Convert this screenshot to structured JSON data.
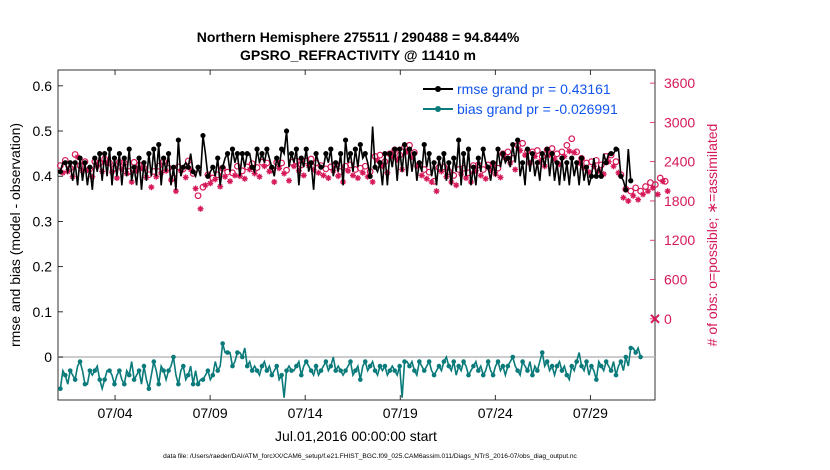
{
  "chart_data": {
    "type": "line",
    "title": [
      "Northern Hemisphere 275511 / 290488 = 94.844%",
      "GPSRO_REFRACTIVITY @ 11410 m"
    ],
    "xlabel": "Jul.01,2016 00:00:00 start",
    "ylabel_left": "rmse and bias (model - observation)",
    "ylabel_right": "# of obs: o=possible; ∗=assimilated",
    "footer": "data file: /Users/raeder/DAI/ATM_forcXX/CAM6_setup/f.e21.FHIST_BGC.f09_025.CAM6assim.011/Diags_NTrS_2016-07/obs_diag_output.nc",
    "x_ticks": [
      4,
      9,
      14,
      19,
      24,
      29
    ],
    "x_tick_labels": [
      "07/04",
      "07/09",
      "07/14",
      "07/19",
      "07/24",
      "07/29"
    ],
    "xlim": [
      1.0,
      32.4
    ],
    "ylim_left": [
      -0.095,
      0.635
    ],
    "y_ticks_left": [
      0,
      0.1,
      0.2,
      0.3,
      0.4,
      0.5,
      0.6
    ],
    "y_tick_labels_left": [
      "0",
      "0.1",
      "0.2",
      "0.3",
      "0.4",
      "0.5",
      "0.6"
    ],
    "ylim_right": [
      -1240,
      3800
    ],
    "y_ticks_right": [
      0,
      600,
      1200,
      1800,
      2400,
      3000,
      3600
    ],
    "y_tick_labels_right": [
      "0",
      "600",
      "1200",
      "1800",
      "2400",
      "3000",
      "3600"
    ],
    "colors": {
      "rmse": "#000000",
      "bias": "#0a7a7a",
      "obs": "#d6195a",
      "legend_text": "#1155ee",
      "zero_line": "#bbbbbb"
    },
    "series": [
      {
        "name": "rmse",
        "legend": "rmse grand pr = 0.43161",
        "values": [
          0.41,
          0.43,
          0.43,
          0.41,
          0.43,
          0.39,
          0.43,
          0.38,
          0.44,
          0.39,
          0.43,
          0.38,
          0.42,
          0.37,
          0.44,
          0.41,
          0.45,
          0.39,
          0.45,
          0.4,
          0.46,
          0.38,
          0.44,
          0.4,
          0.45,
          0.38,
          0.44,
          0.4,
          0.46,
          0.39,
          0.42,
          0.38,
          0.44,
          0.37,
          0.43,
          0.39,
          0.45,
          0.4,
          0.46,
          0.4,
          0.47,
          0.38,
          0.44,
          0.41,
          0.45,
          0.38,
          0.42,
          0.37,
          0.48,
          0.4,
          0.42,
          0.43,
          0.42,
          0.45,
          0.41,
          0.4,
          0.42,
          0.4,
          0.49,
          0.45,
          0.4,
          0.41,
          0.42,
          0.4,
          0.44,
          0.38,
          0.42,
          0.44,
          0.45,
          0.41,
          0.46,
          0.43,
          0.45,
          0.4,
          0.45,
          0.42,
          0.45,
          0.45,
          0.42,
          0.41,
          0.46,
          0.43,
          0.45,
          0.43,
          0.46,
          0.44,
          0.42,
          0.4,
          0.44,
          0.42,
          0.46,
          0.45,
          0.5,
          0.42,
          0.45,
          0.43,
          0.46,
          0.38,
          0.44,
          0.42,
          0.46,
          0.41,
          0.43,
          0.37,
          0.45,
          0.43,
          0.42,
          0.42,
          0.45,
          0.43,
          0.46,
          0.4,
          0.43,
          0.41,
          0.45,
          0.38,
          0.48,
          0.43,
          0.45,
          0.41,
          0.46,
          0.42,
          0.47,
          0.44,
          0.45,
          0.43,
          0.4,
          0.51,
          0.42,
          0.41,
          0.43,
          0.38,
          0.45,
          0.38,
          0.45,
          0.42,
          0.46,
          0.39,
          0.46,
          0.41,
          0.47,
          0.4,
          0.46,
          0.41,
          0.45,
          0.39,
          0.43,
          0.41,
          0.47,
          0.42,
          0.45,
          0.4,
          0.43,
          0.38,
          0.44,
          0.41,
          0.45,
          0.39,
          0.43,
          0.38,
          0.44,
          0.41,
          0.48,
          0.38,
          0.45,
          0.4,
          0.46,
          0.38,
          0.42,
          0.38,
          0.44,
          0.41,
          0.46,
          0.43,
          0.42,
          0.39,
          0.43,
          0.4,
          0.46,
          0.42,
          0.45,
          0.43,
          0.44,
          0.42,
          0.47,
          0.43,
          0.48,
          0.4,
          0.43,
          0.38,
          0.46,
          0.41,
          0.45,
          0.4,
          0.43,
          0.39,
          0.45,
          0.42,
          0.46,
          0.4,
          0.45,
          0.39,
          0.43,
          0.38,
          0.44,
          0.39,
          0.43,
          0.38,
          0.44,
          0.4,
          0.43,
          0.38,
          0.44,
          0.39,
          0.42,
          0.38,
          0.4,
          0.44,
          0.4,
          0.42,
          0.4,
          0.45,
          0.43,
          0.45,
          0.45,
          0.45,
          0.46,
          0.46,
          0.4,
          0.39,
          0.37,
          0.46,
          0.39
        ]
      },
      {
        "name": "bias",
        "legend": "bias grand pr = -0.026991",
        "values": [
          -0.07,
          -0.03,
          -0.04,
          -0.06,
          -0.03,
          -0.04,
          -0.05,
          -0.02,
          -0.01,
          -0.03,
          -0.06,
          -0.06,
          -0.03,
          -0.04,
          -0.03,
          -0.02,
          -0.05,
          -0.07,
          -0.05,
          -0.03,
          -0.03,
          -0.04,
          -0.06,
          -0.04,
          -0.03,
          -0.05,
          -0.06,
          -0.03,
          -0.04,
          -0.01,
          -0.05,
          -0.04,
          -0.03,
          -0.06,
          -0.02,
          -0.05,
          -0.07,
          -0.04,
          -0.01,
          -0.03,
          -0.06,
          -0.02,
          -0.03,
          -0.05,
          -0.03,
          -0.02,
          0.0,
          -0.04,
          -0.06,
          -0.03,
          -0.02,
          -0.05,
          -0.04,
          -0.02,
          -0.06,
          -0.03,
          -0.06,
          -0.05,
          -0.05,
          -0.04,
          -0.03,
          -0.05,
          -0.04,
          -0.01,
          -0.03,
          -0.02,
          0.03,
          0.01,
          0.01,
          0.01,
          -0.02,
          -0.01,
          0.01,
          0.01,
          0.0,
          0.02,
          -0.02,
          -0.01,
          -0.03,
          -0.02,
          -0.03,
          -0.04,
          -0.02,
          -0.01,
          -0.03,
          -0.02,
          -0.04,
          -0.03,
          -0.02,
          -0.05,
          -0.04,
          -0.09,
          -0.03,
          -0.02,
          -0.03,
          -0.03,
          -0.02,
          -0.01,
          -0.04,
          -0.02,
          -0.01,
          -0.02,
          -0.03,
          -0.04,
          -0.02,
          -0.04,
          -0.03,
          -0.02,
          -0.01,
          -0.03,
          -0.02,
          0.0,
          -0.03,
          -0.02,
          -0.03,
          -0.04,
          -0.03,
          -0.02,
          -0.01,
          -0.04,
          -0.03,
          -0.02,
          -0.05,
          -0.02,
          -0.01,
          -0.03,
          -0.02,
          -0.01,
          -0.03,
          -0.04,
          -0.02,
          -0.03,
          -0.02,
          -0.04,
          -0.03,
          -0.02,
          -0.03,
          -0.04,
          -0.02,
          -0.09,
          -0.01,
          -0.01,
          -0.02,
          -0.01,
          -0.03,
          -0.04,
          -0.01,
          -0.02,
          -0.03,
          -0.02,
          -0.01,
          -0.03,
          -0.04,
          -0.03,
          -0.02,
          -0.03,
          -0.01,
          0.0,
          -0.02,
          -0.03,
          -0.01,
          -0.04,
          -0.02,
          -0.03,
          -0.01,
          -0.02,
          -0.04,
          -0.03,
          -0.02,
          -0.01,
          -0.03,
          -0.02,
          -0.04,
          -0.03,
          -0.01,
          -0.03,
          -0.04,
          -0.02,
          -0.01,
          -0.03,
          -0.02,
          -0.04,
          -0.02,
          -0.01,
          0.0,
          -0.02,
          -0.03,
          -0.04,
          -0.01,
          -0.02,
          -0.03,
          -0.01,
          -0.04,
          -0.02,
          -0.03,
          -0.01,
          0.01,
          -0.02,
          -0.01,
          -0.03,
          -0.02,
          -0.04,
          -0.02,
          -0.01,
          -0.03,
          -0.02,
          -0.04,
          -0.05,
          -0.02,
          -0.03,
          -0.01,
          0.01,
          -0.02,
          -0.03,
          -0.01,
          -0.04,
          -0.02,
          -0.03,
          -0.05,
          -0.01,
          -0.02,
          -0.03,
          -0.01,
          -0.02,
          -0.03,
          -0.01,
          -0.04,
          -0.02,
          -0.01,
          -0.03,
          0.0,
          -0.02,
          0.02,
          0.02,
          0.01,
          0.02,
          0.0
        ]
      },
      {
        "name": "obs_possible",
        "marker": "o",
        "values": [
          2340,
          2350,
          2420,
          2390,
          2300,
          2280,
          2510,
          2590,
          2340,
          2370,
          2400,
          2390,
          2290,
          2280,
          2400,
          2450,
          2380,
          2360,
          2440,
          2500,
          2380,
          2350,
          2300,
          2260,
          2390,
          2400,
          2380,
          2330,
          2250,
          2200,
          2390,
          2380,
          2350,
          2420,
          2300,
          2270,
          2200,
          2120,
          2250,
          2280,
          2330,
          2350,
          2400,
          2380,
          2300,
          2230,
          2150,
          2050,
          2320,
          2380,
          2290,
          2270,
          2410,
          2400,
          2220,
          2100,
          1880,
          1780,
          2010,
          2150,
          2200,
          2180,
          2150,
          2240,
          2200,
          2130,
          2300,
          2280,
          2240,
          2210,
          2230,
          2300,
          2330,
          2290,
          2260,
          2250,
          2320,
          2400,
          2370,
          2330,
          2310,
          2280,
          2390,
          2450,
          2380,
          2360,
          2280,
          2200,
          2390,
          2420,
          2380,
          2330,
          2270,
          2220,
          2390,
          2450,
          2410,
          2380,
          2350,
          2300,
          2410,
          2460,
          2440,
          2400,
          2380,
          2350,
          2340,
          2300,
          2290,
          2260,
          2320,
          2380,
          2360,
          2290,
          2250,
          2200,
          2330,
          2380,
          2350,
          2300,
          2280,
          2260,
          2300,
          2350,
          2330,
          2280,
          2250,
          2200,
          2480,
          2550,
          2500,
          2450,
          2400,
          2350,
          2520,
          2600,
          2580,
          2550,
          2500,
          2400,
          2620,
          2680,
          2650,
          2600,
          2540,
          2450,
          2360,
          2300,
          2280,
          2250,
          2240,
          2200,
          2100,
          2050,
          2310,
          2360,
          2320,
          2280,
          2250,
          2200,
          2190,
          2150,
          2280,
          2330,
          2300,
          2260,
          2230,
          2200,
          2340,
          2380,
          2350,
          2300,
          2280,
          2250,
          2350,
          2390,
          2370,
          2330,
          2300,
          2270,
          2520,
          2580,
          2550,
          2500,
          2450,
          2400,
          2650,
          2700,
          2680,
          2620,
          2560,
          2500,
          2550,
          2600,
          2570,
          2520,
          2480,
          2450,
          2580,
          2620,
          2600,
          2560,
          2520,
          2480,
          2550,
          2600,
          2650,
          2700,
          2750,
          2680,
          2550,
          2500,
          2450,
          2420,
          2380,
          2350,
          2400,
          2450,
          2420,
          2380,
          2350,
          2320,
          2480,
          2520,
          2500,
          2450,
          2400,
          2350,
          2200,
          1950,
          1980,
          1900,
          1950,
          1980,
          2000,
          1920,
          1950,
          2010,
          2020,
          2050,
          2080,
          2100,
          2050,
          2000,
          2150,
          2200,
          2100,
          2050
        ]
      },
      {
        "name": "obs_assimilated",
        "marker": "*",
        "values": [
          2150,
          2230,
          2280,
          2250,
          2190,
          2170,
          2390,
          2470,
          2230,
          2260,
          2280,
          2270,
          2180,
          2170,
          2280,
          2330,
          2270,
          2250,
          2330,
          2380,
          2260,
          2240,
          2190,
          2150,
          2280,
          2290,
          2260,
          2220,
          2140,
          2090,
          2270,
          2260,
          2240,
          2300,
          2190,
          2160,
          2090,
          2010,
          2140,
          2170,
          2210,
          2230,
          2280,
          2260,
          2190,
          2120,
          2040,
          1950,
          2210,
          2260,
          2180,
          2160,
          2290,
          2280,
          2110,
          1990,
          1780,
          1680,
          1910,
          2040,
          2090,
          2070,
          2040,
          2130,
          2090,
          2020,
          2190,
          2170,
          2130,
          2100,
          2120,
          2190,
          2220,
          2180,
          2150,
          2140,
          2210,
          2280,
          2250,
          2220,
          2200,
          2170,
          2270,
          2330,
          2260,
          2250,
          2170,
          2090,
          2270,
          2300,
          2260,
          2220,
          2160,
          2110,
          2270,
          2330,
          2290,
          2260,
          2230,
          2190,
          2290,
          2340,
          2320,
          2280,
          2260,
          2230,
          2220,
          2190,
          2180,
          2150,
          2200,
          2260,
          2240,
          2180,
          2140,
          2090,
          2210,
          2260,
          2230,
          2190,
          2170,
          2150,
          2180,
          2230,
          2210,
          2170,
          2140,
          2090,
          2360,
          2420,
          2380,
          2330,
          2280,
          2230,
          2400,
          2480,
          2460,
          2430,
          2380,
          2280,
          2500,
          2550,
          2520,
          2470,
          2420,
          2330,
          2240,
          2190,
          2170,
          2140,
          2130,
          2090,
          1990,
          1950,
          2200,
          2250,
          2210,
          2170,
          2140,
          2090,
          2080,
          2040,
          2170,
          2210,
          2180,
          2150,
          2120,
          2090,
          2220,
          2260,
          2230,
          2190,
          2170,
          2140,
          2230,
          2270,
          2250,
          2210,
          2190,
          2160,
          2400,
          2460,
          2430,
          2380,
          2330,
          2280,
          2520,
          2570,
          2550,
          2500,
          2440,
          2380,
          2430,
          2480,
          2450,
          2400,
          2360,
          2330,
          2460,
          2500,
          2480,
          2440,
          2400,
          2360,
          2430,
          2480,
          2520,
          2560,
          2600,
          2540,
          2430,
          2380,
          2340,
          2310,
          2270,
          2240,
          2280,
          2330,
          2300,
          2260,
          2230,
          2210,
          2360,
          2400,
          2380,
          2330,
          2280,
          2230,
          2090,
          1850,
          1880,
          1800,
          1850,
          1880,
          1900,
          1820,
          1850,
          1900,
          1920,
          1950,
          1980,
          2000,
          1950,
          1900,
          2050,
          2100,
          2000,
          1950
        ]
      }
    ]
  }
}
